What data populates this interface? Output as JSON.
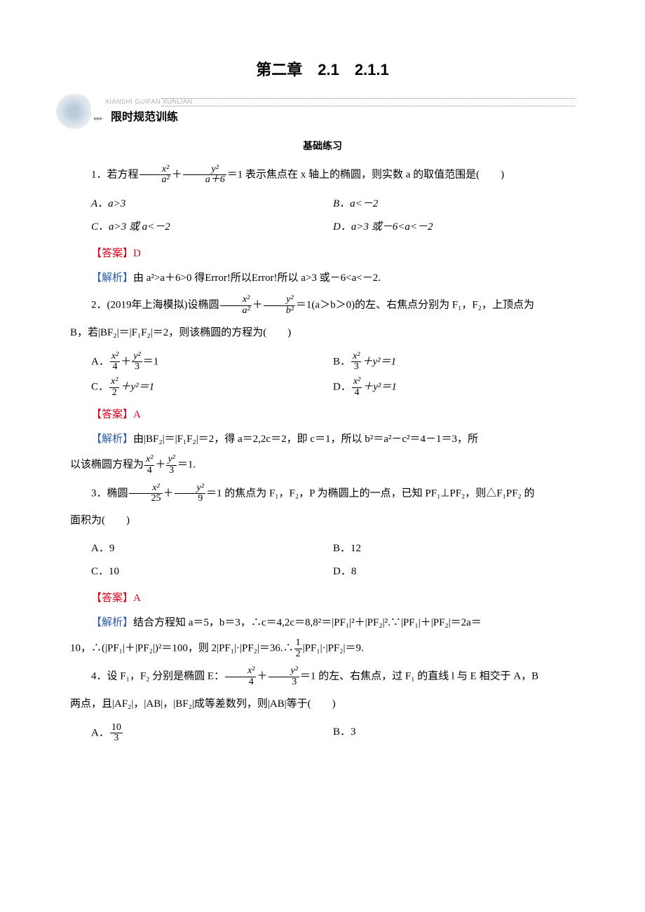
{
  "title": "第二章　2.1　2.1.1",
  "banner": {
    "pinyin": "XIANSHI GUIFAN XUNLIAN",
    "text": "限时规范训练"
  },
  "subtitle": "基础练习",
  "q1": {
    "stem_pre": "1．若方程",
    "frac1_num": "x²",
    "frac1_den": "a²",
    "mid1": "＋",
    "frac2_num": "y²",
    "frac2_den": "a＋6",
    "stem_post": "＝1 表示焦点在 x 轴上的椭圆，则实数 a 的取值范围是(　　)",
    "optA": "A．a>3",
    "optB": "B．a<－2",
    "optC": "C．a>3 或 a<－2",
    "optD": "D．a>3 或－6<a<－2",
    "answer": "【答案】D",
    "analysis_lead": "【解析】",
    "analysis": "由 a²>a＋6>0 得Error!所以Error!所以 a>3 或－6<a<－2."
  },
  "q2": {
    "stem_pre": "2．(2019年上海模拟)设椭圆",
    "frac1_num": "x²",
    "frac1_den": "a²",
    "mid1": "＋",
    "frac2_num": "y²",
    "frac2_den": "b²",
    "stem_post": "＝1(a＞b＞0)的左、右焦点分别为 F₁，F₂，上顶点为",
    "stem_line2": "B，若|BF₂|＝|F₁F₂|＝2，则该椭圆的方程为(　　)",
    "optA_pre": "A．",
    "optA_f1n": "x²",
    "optA_f1d": "4",
    "optA_mid": "＋",
    "optA_f2n": "y²",
    "optA_f2d": "3",
    "optA_post": "＝1",
    "optB_pre": "B．",
    "optB_f1n": "x²",
    "optB_f1d": "3",
    "optB_post": "＋y²＝1",
    "optC_pre": "C．",
    "optC_f1n": "x²",
    "optC_f1d": "2",
    "optC_post": "＋y²＝1",
    "optD_pre": "D．",
    "optD_f1n": "x²",
    "optD_f1d": "4",
    "optD_post": "＋y²＝1",
    "answer": "【答案】A",
    "analysis_lead": "【解析】",
    "analysis1": "由|BF₂|＝|F₁F₂|＝2，得 a＝2,2c＝2，即 c＝1，所以 b²＝a²－c²＝4－1＝3，所",
    "analysis2_pre": "以该椭圆方程为",
    "analysis2_f1n": "x²",
    "analysis2_f1d": "4",
    "analysis2_mid": "＋",
    "analysis2_f2n": "y²",
    "analysis2_f2d": "3",
    "analysis2_post": "＝1."
  },
  "q3": {
    "stem_pre": "3．椭圆",
    "frac1_num": "x²",
    "frac1_den": "25",
    "mid1": "＋",
    "frac2_num": "y²",
    "frac2_den": "9",
    "stem_post": "＝1 的焦点为 F₁，F₂，P 为椭圆上的一点，已知 PF₁⊥PF₂，则△F₁PF₂ 的",
    "stem_line2": "面积为(　　)",
    "optA": "A．9",
    "optB": "B．12",
    "optC": "C．10",
    "optD": "D．8",
    "answer": "【答案】A",
    "analysis_lead": "【解析】",
    "analysis_a": "结合方程知 a＝5，b＝3，∴c＝4,2c＝8,8²＝|PF₁|²＋|PF₂|².∵|PF₁|＋|PF₂|＝2a＝",
    "analysis_b_pre": "10，∴(|PF₁|＋|PF₂|)²＝100，则 2|PF₁|·|PF₂|＝36.∴",
    "analysis_b_f_n": "1",
    "analysis_b_f_d": "2",
    "analysis_b_post": "|PF₁|·|PF₂|＝9."
  },
  "q4": {
    "stem_pre": "4．设 F₁，F₂ 分别是椭圆 E：",
    "frac1_num": "x²",
    "frac1_den": "4",
    "mid1": "＋",
    "frac2_num": "y²",
    "frac2_den": "3",
    "stem_post": "＝1 的左、右焦点，过 F₁ 的直线 l 与 E 相交于 A，B",
    "stem_line2": "两点，且|AF₂|，|AB|，|BF₂|成等差数列，则|AB|等于(　　)",
    "optA_pre": "A．",
    "optA_f_n": "10",
    "optA_f_d": "3",
    "optB": "B．3"
  },
  "colors": {
    "answer": "#d9001b",
    "analysis_lead": "#2a5caa",
    "text": "#000000",
    "background": "#ffffff"
  }
}
